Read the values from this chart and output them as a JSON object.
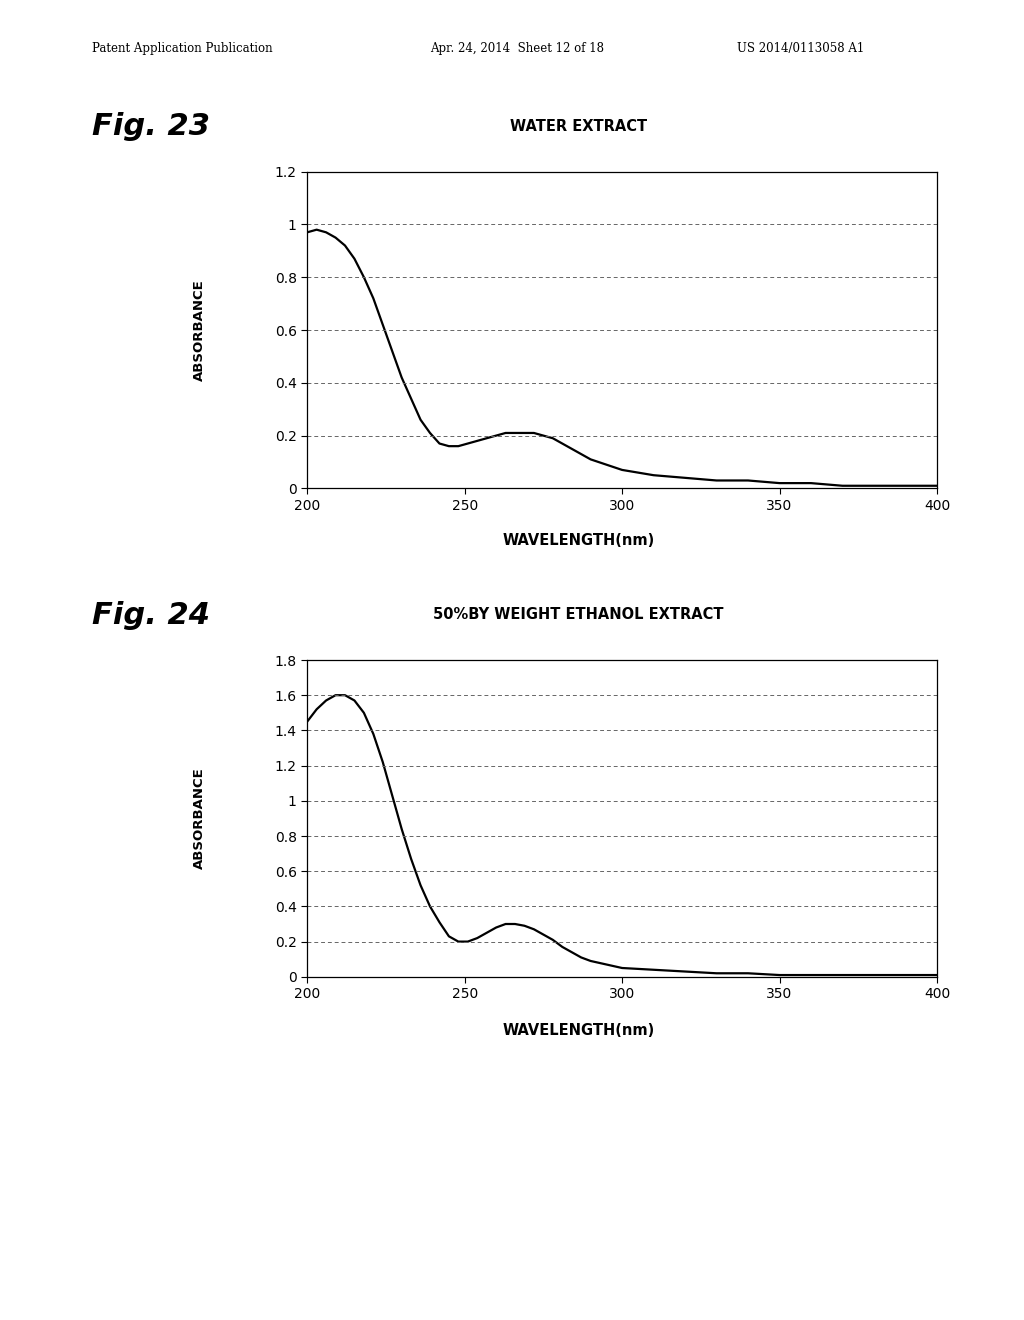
{
  "page_header_left": "Patent Application Publication",
  "page_header_mid": "Apr. 24, 2014  Sheet 12 of 18",
  "page_header_right": "US 2014/0113058 A1",
  "fig23_label": "Fig. 23",
  "fig23_title": "WATER EXTRACT",
  "fig23_xlabel": "WAVELENGTH(nm)",
  "fig23_ylabel": "ABSORBANCE",
  "fig23_xlim": [
    200,
    400
  ],
  "fig23_ylim": [
    0,
    1.2
  ],
  "fig23_yticks": [
    0,
    0.2,
    0.4,
    0.6,
    0.8,
    1.0,
    1.2
  ],
  "fig23_yticklabels": [
    "0",
    "0.2",
    "0.4",
    "0.6",
    "0.8",
    "1",
    "1.2"
  ],
  "fig23_xticks": [
    200,
    250,
    300,
    350,
    400
  ],
  "fig23_curve_x": [
    200,
    203,
    206,
    209,
    212,
    215,
    218,
    221,
    224,
    227,
    230,
    233,
    236,
    239,
    242,
    245,
    248,
    251,
    254,
    257,
    260,
    263,
    266,
    269,
    272,
    275,
    278,
    281,
    284,
    287,
    290,
    295,
    300,
    310,
    320,
    330,
    340,
    350,
    360,
    370,
    380,
    390,
    400
  ],
  "fig23_curve_y": [
    0.97,
    0.98,
    0.97,
    0.95,
    0.92,
    0.87,
    0.8,
    0.72,
    0.62,
    0.52,
    0.42,
    0.34,
    0.26,
    0.21,
    0.17,
    0.16,
    0.16,
    0.17,
    0.18,
    0.19,
    0.2,
    0.21,
    0.21,
    0.21,
    0.21,
    0.2,
    0.19,
    0.17,
    0.15,
    0.13,
    0.11,
    0.09,
    0.07,
    0.05,
    0.04,
    0.03,
    0.03,
    0.02,
    0.02,
    0.01,
    0.01,
    0.01,
    0.01
  ],
  "fig24_label": "Fig. 24",
  "fig24_title": "50%BY WEIGHT ETHANOL EXTRACT",
  "fig24_xlabel": "WAVELENGTH(nm)",
  "fig24_ylabel": "ABSORBANCE",
  "fig24_xlim": [
    200,
    400
  ],
  "fig24_ylim": [
    0,
    1.8
  ],
  "fig24_yticks": [
    0,
    0.2,
    0.4,
    0.6,
    0.8,
    1.0,
    1.2,
    1.4,
    1.6,
    1.8
  ],
  "fig24_yticklabels": [
    "0",
    "0.2",
    "0.4",
    "0.6",
    "0.8",
    "1",
    "1.2",
    "1.4",
    "1.6",
    "1.8"
  ],
  "fig24_xticks": [
    200,
    250,
    300,
    350,
    400
  ],
  "fig24_curve_x": [
    200,
    203,
    206,
    209,
    212,
    215,
    218,
    221,
    224,
    227,
    230,
    233,
    236,
    239,
    242,
    245,
    248,
    251,
    254,
    257,
    260,
    263,
    266,
    269,
    272,
    275,
    278,
    281,
    284,
    287,
    290,
    295,
    300,
    310,
    320,
    330,
    340,
    350,
    360,
    370,
    380,
    390,
    400
  ],
  "fig24_curve_y": [
    1.45,
    1.52,
    1.57,
    1.6,
    1.6,
    1.57,
    1.5,
    1.38,
    1.22,
    1.03,
    0.84,
    0.67,
    0.52,
    0.4,
    0.31,
    0.23,
    0.2,
    0.2,
    0.22,
    0.25,
    0.28,
    0.3,
    0.3,
    0.29,
    0.27,
    0.24,
    0.21,
    0.17,
    0.14,
    0.11,
    0.09,
    0.07,
    0.05,
    0.04,
    0.03,
    0.02,
    0.02,
    0.01,
    0.01,
    0.01,
    0.01,
    0.01,
    0.01
  ],
  "background_color": "#ffffff",
  "line_color": "#000000",
  "grid_color": "#666666",
  "text_color": "#000000"
}
